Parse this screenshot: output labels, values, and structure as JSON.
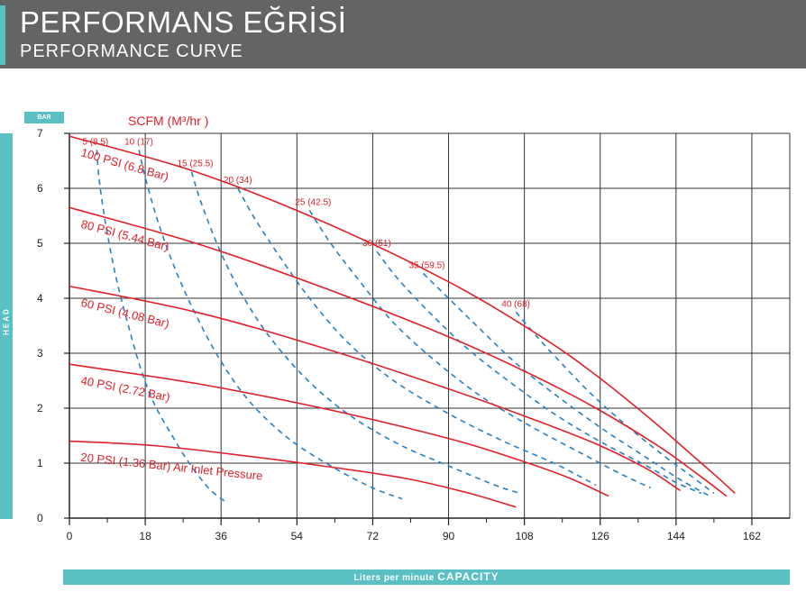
{
  "header": {
    "title_tr": "PERFORMANS EĞRİSİ",
    "title_en": "PERFORMANCE CURVE"
  },
  "colors": {
    "header_bg": "#636466",
    "accent": "#5bc0c4",
    "pressure_curve": "#e0202a",
    "scfm_curve": "#2a7fc1",
    "grid": "#333333"
  },
  "chart_data": {
    "type": "line",
    "y_unit_badge": "BAR",
    "ylabel": "HEAD",
    "xlabel_prefix": "Liters per minute",
    "xlabel_main": "CAPACITY",
    "scfm_label": "SCFM (M³/hr )",
    "xlim": [
      0,
      171
    ],
    "ylim": [
      0,
      7
    ],
    "xticks": [
      "0",
      "18",
      "36",
      "54",
      "72",
      "90",
      "108",
      "126",
      "144",
      "162"
    ],
    "yticks": [
      "0",
      "1",
      "2",
      "3",
      "4",
      "5",
      "6",
      "7"
    ],
    "grid": true,
    "pressure_curves": [
      {
        "name": "100 PSI (6.8 Bar)",
        "x": [
          0,
          30,
          60,
          90,
          112,
          125,
          138,
          147,
          153,
          158
        ],
        "y": [
          6.95,
          6.3,
          5.4,
          4.3,
          3.3,
          2.6,
          1.8,
          1.2,
          0.8,
          0.45
        ]
      },
      {
        "name": "80 PSI (5.44 Bar)",
        "x": [
          0,
          30,
          60,
          90,
          110,
          125,
          140,
          150,
          156
        ],
        "y": [
          5.65,
          5.0,
          4.2,
          3.3,
          2.6,
          2.0,
          1.3,
          0.75,
          0.4
        ]
      },
      {
        "name": "60 PSI (4.08 Bar)",
        "x": [
          0,
          30,
          60,
          90,
          110,
          125,
          137,
          145
        ],
        "y": [
          4.22,
          3.75,
          3.1,
          2.35,
          1.8,
          1.35,
          0.9,
          0.5
        ]
      },
      {
        "name": "40 PSI (2.72 Bar)",
        "x": [
          0,
          30,
          60,
          90,
          105,
          118,
          128
        ],
        "y": [
          2.8,
          2.45,
          2.0,
          1.45,
          1.1,
          0.75,
          0.4
        ]
      },
      {
        "name": "20 PSI (1.36 Bar) Air Inlet Pressure",
        "x": [
          0,
          20,
          40,
          60,
          80,
          95,
          106
        ],
        "y": [
          1.4,
          1.32,
          1.15,
          0.95,
          0.72,
          0.45,
          0.2
        ]
      }
    ],
    "scfm_curves": [
      {
        "name": "5 (8.5)",
        "x": [
          6.5,
          7,
          8.5,
          11,
          14,
          17,
          20,
          24,
          28,
          33,
          37
        ],
        "y": [
          6.7,
          6.2,
          5.4,
          4.4,
          3.5,
          2.7,
          2.1,
          1.55,
          1.05,
          0.55,
          0.3
        ]
      },
      {
        "name": "10 (17)",
        "x": [
          16.5,
          18,
          21,
          25,
          30,
          36,
          43,
          52,
          62,
          72,
          79
        ],
        "y": [
          6.7,
          6.2,
          5.4,
          4.55,
          3.7,
          2.85,
          2.1,
          1.45,
          0.95,
          0.55,
          0.35
        ]
      },
      {
        "name": "15 (25.5)",
        "x": [
          29,
          31,
          35,
          40,
          47,
          56,
          66,
          78,
          90,
          101,
          107
        ],
        "y": [
          6.3,
          5.8,
          5.0,
          4.2,
          3.35,
          2.55,
          1.9,
          1.35,
          0.95,
          0.6,
          0.45
        ]
      },
      {
        "name": "20 (34)",
        "x": [
          40,
          44,
          50,
          57,
          66,
          77,
          90,
          103,
          115,
          125
        ],
        "y": [
          6.0,
          5.45,
          4.75,
          4.0,
          3.2,
          2.5,
          1.9,
          1.4,
          1.0,
          0.6
        ]
      },
      {
        "name": "25 (42.5)",
        "x": [
          57,
          62,
          69,
          77,
          87,
          98,
          110,
          121,
          131,
          138
        ],
        "y": [
          5.6,
          5.0,
          4.3,
          3.55,
          2.85,
          2.2,
          1.65,
          1.2,
          0.8,
          0.55
        ]
      },
      {
        "name": "30 (51)",
        "x": [
          73,
          78,
          86,
          95,
          105,
          116,
          127,
          137,
          144,
          150
        ],
        "y": [
          4.85,
          4.35,
          3.7,
          3.05,
          2.45,
          1.85,
          1.35,
          0.95,
          0.65,
          0.45
        ]
      },
      {
        "name": "35 (59.5)",
        "x": [
          84,
          90,
          98,
          107,
          117,
          127,
          137,
          145,
          152
        ],
        "y": [
          4.45,
          4.0,
          3.4,
          2.75,
          2.15,
          1.6,
          1.1,
          0.7,
          0.4
        ]
      },
      {
        "name": "40 (68)",
        "x": [
          106,
          111,
          117,
          124,
          132,
          140,
          147,
          153
        ],
        "y": [
          3.75,
          3.3,
          2.8,
          2.25,
          1.7,
          1.2,
          0.8,
          0.45
        ]
      }
    ]
  }
}
